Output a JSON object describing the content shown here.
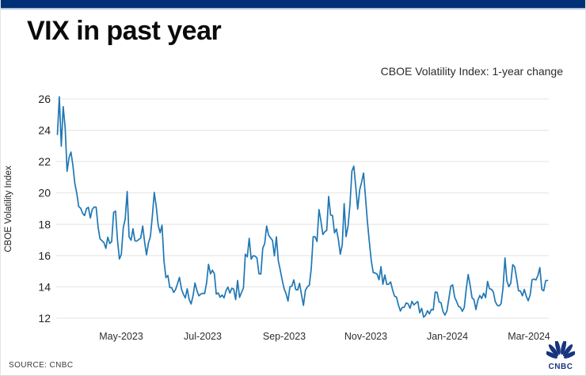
{
  "header": {
    "title": "VIX in past year"
  },
  "chart": {
    "subtitle": "CBOE Volatility Index: 1-year change",
    "y_axis_title": "CBOE Volatility Index"
  },
  "footer": {
    "source_label": "SOURCE: CNBC",
    "logo_text": "CNBC"
  },
  "colors": {
    "accent_bar": "#003077",
    "accent_bar_edge": "#b5c3dc",
    "line": "#1f77b4",
    "grid": "#e3e3e3",
    "tick_text": "#222222",
    "logo_navy": "#17357e"
  },
  "chart_data": {
    "type": "line",
    "title": "VIX in past year",
    "subtitle": "CBOE Volatility Index: 1-year change",
    "xlabel": "",
    "ylabel": "CBOE Volatility Index",
    "x_range": [
      "Mar-2023",
      "Mar-2024"
    ],
    "x_frequency": "daily",
    "ylim": [
      12,
      26
    ],
    "yticks": [
      12,
      14,
      16,
      18,
      20,
      22,
      24,
      26
    ],
    "xtick_labels": [
      "May-2023",
      "Jul-2023",
      "Sep-2023",
      "Nov-2023",
      "Jan-2024",
      "Mar-2024"
    ],
    "grid": "horizontal",
    "legend_position": "none",
    "series_name": "CBOE Volatility Index (VIX) daily close",
    "values": [
      23.73,
      26.14,
      22.99,
      25.51,
      24.15,
      21.38,
      22.26,
      22.61,
      21.74,
      20.6,
      19.97,
      19.12,
      19.02,
      18.7,
      18.55,
      19.0,
      19.08,
      18.4,
      18.95,
      19.1,
      19.09,
      17.8,
      17.07,
      16.95,
      16.83,
      16.46,
      17.17,
      16.77,
      16.89,
      18.76,
      18.84,
      17.03,
      15.78,
      16.08,
      17.78,
      18.34,
      20.09,
      17.19,
      16.98,
      17.71,
      16.94,
      16.93,
      17.03,
      17.12,
      17.89,
      16.87,
      16.05,
      16.81,
      17.21,
      18.53,
      20.03,
      19.14,
      17.95,
      17.46,
      17.94,
      15.65,
      14.6,
      14.73,
      13.96,
      13.94,
      13.65,
      13.83,
      14.21,
      14.61,
      13.88,
      13.54,
      13.3,
      13.88,
      13.2,
      12.91,
      13.44,
      14.25,
      13.76,
      13.43,
      13.54,
      13.59,
      13.57,
      14.26,
      15.44,
      14.83,
      15.07,
      14.84,
      13.54,
      13.61,
      13.34,
      13.48,
      13.3,
      13.76,
      13.99,
      13.6,
      13.91,
      13.86,
      13.19,
      14.41,
      13.33,
      13.63,
      13.93,
      16.09,
      15.92,
      17.1,
      15.77,
      15.99,
      15.96,
      15.85,
      14.84,
      14.82,
      16.46,
      16.78,
      17.89,
      17.3,
      17.13,
      16.97,
      15.98,
      17.2,
      15.68,
      15.08,
      14.45,
      13.88,
      13.57,
      13.09,
      14.01,
      14.04,
      14.45,
      13.84,
      13.8,
      14.23,
      13.48,
      12.82,
      13.79,
      14.0,
      14.11,
      15.14,
      17.2,
      17.2,
      16.9,
      18.94,
      18.22,
      17.34,
      17.52,
      17.61,
      19.78,
      18.58,
      18.56,
      17.45,
      17.7,
      17.03,
      16.09,
      16.69,
      19.32,
      17.21,
      17.88,
      19.22,
      21.4,
      21.71,
      20.37,
      18.97,
      20.19,
      20.68,
      21.27,
      19.75,
      18.14,
      16.87,
      15.66,
      14.91,
      14.89,
      14.81,
      14.45,
      15.29,
      14.17,
      14.76,
      14.16,
      14.18,
      14.32,
      13.8,
      13.41,
      13.35,
      12.85,
      12.46,
      12.69,
      12.69,
      12.98,
      12.92,
      12.63,
      13.08,
      12.85,
      12.97,
      13.06,
      12.35,
      12.63,
      12.07,
      12.19,
      12.48,
      12.28,
      12.56,
      12.53,
      13.67,
      13.65,
      13.03,
      12.99,
      12.43,
      12.2,
      12.45,
      13.2,
      14.04,
      14.13,
      13.35,
      13.08,
      12.76,
      12.69,
      12.44,
      12.7,
      13.84,
      14.79,
      14.13,
      13.3,
      13.19,
      12.55,
      13.14,
      13.45,
      13.26,
      13.6,
      13.31,
      14.35,
      13.88,
      13.85,
      13.67,
      13.06,
      12.83,
      12.79,
      12.93,
      13.93,
      15.85,
      14.38,
      14.01,
      14.24,
      15.42,
      15.29,
      14.54,
      13.75,
      13.74,
      13.43,
      13.84,
      13.4,
      13.11,
      13.49,
      14.46,
      14.5,
      14.44,
      14.74,
      15.23,
      13.84,
      13.75,
      14.4,
      14.41
    ]
  }
}
